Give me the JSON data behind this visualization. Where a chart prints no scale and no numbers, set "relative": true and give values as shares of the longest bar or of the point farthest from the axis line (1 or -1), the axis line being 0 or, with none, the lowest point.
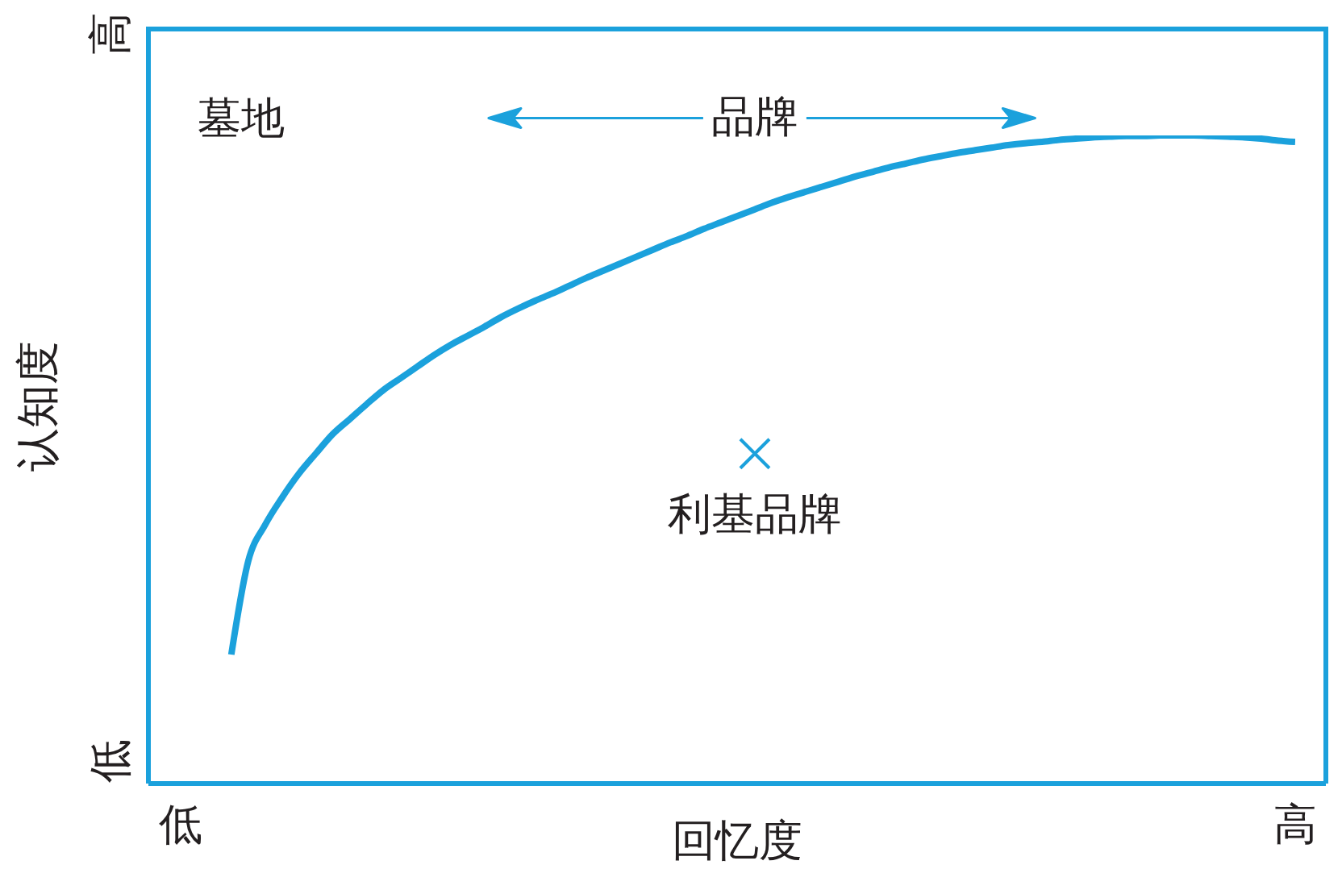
{
  "chart_data": {
    "type": "line",
    "relative": true,
    "xlabel": "回忆度",
    "ylabel": "认知度",
    "categories": [
      "低",
      null,
      null,
      null,
      null,
      null,
      null,
      null,
      null,
      null,
      null,
      null,
      null,
      null,
      null,
      null,
      null,
      null,
      null,
      null,
      null,
      null,
      null,
      null,
      null,
      null,
      null,
      null,
      null,
      null,
      null,
      null,
      null,
      null,
      null,
      null,
      null,
      null,
      null,
      null,
      null,
      null,
      null,
      null,
      null,
      null,
      null,
      null,
      null,
      null,
      null,
      null,
      null,
      null,
      null,
      null,
      null,
      null,
      null,
      null,
      null,
      null,
      null,
      null,
      null,
      null,
      "高"
    ],
    "series": [
      {
        "color": "#1ba1dc",
        "marker": "none",
        "values": [
          null,
          null,
          null,
          0.199,
          0.343,
          0.399,
          0.441,
          0.478,
          0.509,
          0.539,
          0.562,
          0.585,
          0.607,
          0.625,
          0.643,
          0.661,
          0.677,
          0.691,
          0.705,
          0.72,
          0.733,
          0.745,
          0.756,
          0.768,
          0.78,
          0.791,
          0.802,
          0.813,
          0.824,
          0.835,
          0.845,
          0.856,
          0.866,
          0.876,
          0.886,
          0.896,
          0.905,
          0.913,
          0.921,
          0.929,
          0.937,
          0.944,
          0.951,
          0.957,
          0.963,
          0.968,
          0.973,
          0.977,
          0.981,
          0.985,
          0.988,
          0.99,
          0.993,
          0.995,
          0.997,
          0.998,
          0.999,
          0.999,
          1,
          1,
          1,
          0.999,
          0.998,
          0.997,
          0.995,
          0.992,
          0.99
        ]
      },
      {
        "type": "scatter",
        "name": "利基品牌",
        "color": "#1ba1dc",
        "marker": "cross",
        "values": [
          null,
          null,
          null,
          null,
          null,
          null,
          null,
          null,
          null,
          null,
          null,
          null,
          null,
          null,
          null,
          null,
          null,
          null,
          null,
          null,
          null,
          null,
          null,
          null,
          null,
          null,
          null,
          null,
          null,
          null,
          null,
          null,
          null,
          null,
          0.509,
          null,
          null,
          null,
          null,
          null,
          null,
          null,
          null,
          null,
          null,
          null,
          null,
          null,
          null,
          null,
          null,
          null,
          null,
          null,
          null,
          null,
          null,
          null,
          null,
          null,
          null,
          null,
          null,
          null,
          null,
          null,
          null
        ]
      }
    ],
    "annotations": [
      "墓地",
      "品牌",
      "高",
      "低"
    ]
  }
}
